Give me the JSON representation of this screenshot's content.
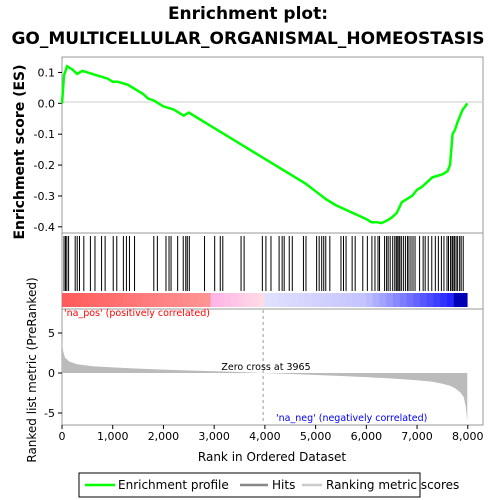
{
  "title_line1": "Enrichment plot:",
  "title_line2": "GO_MULTICELLULAR_ORGANISMAL_HOMEOSTASIS",
  "legend": {
    "es_label": "Enrichment profile",
    "hits_label": "Hits",
    "metric_label": "Ranking metric scores"
  },
  "colors": {
    "es_line": "#00ff00",
    "hits": "#000000",
    "metric_fill": "#bbbbbb",
    "pos_label": "#ff0000",
    "neg_label": "#0000ff",
    "zero_line": "#999999"
  },
  "annotations": {
    "pos": "'na_pos' (positively correlated)",
    "neg": "'na_neg' (negatively correlated)",
    "zero_cross": "Zero cross at 3965"
  },
  "chart_data": [
    {
      "type": "line",
      "ylabel": "Enrichment score (ES)",
      "ylim": [
        -0.42,
        0.15
      ],
      "yticks": [
        0.1,
        0.0,
        -0.1,
        -0.2,
        -0.3,
        -0.4
      ],
      "ytick_labels": [
        "0.1",
        "0.0",
        "-0.1",
        "-0.2",
        "-0.3",
        "-0.4"
      ],
      "grid": false,
      "series": [
        {
          "x": [
            0,
            40,
            100,
            200,
            300,
            400,
            500,
            700,
            800,
            900,
            1000,
            1100,
            1200,
            1300,
            1400,
            1500,
            1600,
            1700,
            1800,
            1900,
            2000,
            2100,
            2200,
            2300,
            2400,
            2500,
            2700,
            3000,
            3300,
            3600,
            3900,
            4200,
            4500,
            4800,
            5000,
            5200,
            5400,
            5600,
            5800,
            6000,
            6100,
            6200,
            6300,
            6400,
            6500,
            6600,
            6700,
            6800,
            6900,
            7000,
            7100,
            7200,
            7300,
            7400,
            7500,
            7600,
            7650,
            7700,
            7750,
            7800,
            7850,
            7900,
            7950,
            7990
          ],
          "y": [
            0.0,
            0.09,
            0.12,
            0.11,
            0.095,
            0.105,
            0.1,
            0.09,
            0.085,
            0.08,
            0.07,
            0.07,
            0.065,
            0.06,
            0.05,
            0.04,
            0.03,
            0.015,
            0.01,
            0.0,
            -0.01,
            -0.015,
            -0.02,
            -0.03,
            -0.04,
            -0.03,
            -0.05,
            -0.08,
            -0.11,
            -0.14,
            -0.17,
            -0.2,
            -0.23,
            -0.26,
            -0.285,
            -0.31,
            -0.33,
            -0.345,
            -0.36,
            -0.375,
            -0.385,
            -0.385,
            -0.388,
            -0.38,
            -0.37,
            -0.355,
            -0.32,
            -0.31,
            -0.3,
            -0.28,
            -0.27,
            -0.255,
            -0.24,
            -0.235,
            -0.23,
            -0.22,
            -0.2,
            -0.1,
            -0.085,
            -0.06,
            -0.04,
            -0.02,
            -0.01,
            0.0
          ]
        }
      ]
    },
    {
      "type": "line",
      "xlabel": "Rank in Ordered Dataset",
      "ylabel": "Ranked list metric (PreRanked)",
      "xlim": [
        0,
        8300
      ],
      "ylim": [
        -6.5,
        8
      ],
      "xticks": [
        0,
        1000,
        2000,
        3000,
        4000,
        5000,
        6000,
        7000,
        8000
      ],
      "xtick_labels": [
        "0",
        "1,000",
        "2,000",
        "3,000",
        "4,000",
        "5,000",
        "6,000",
        "7,000",
        "8,000"
      ],
      "yticks": [
        5,
        0,
        -5
      ],
      "ytick_labels": [
        "5",
        "0",
        "-5"
      ],
      "zero_cross": 3965,
      "series": [
        {
          "name": "Ranking metric scores",
          "x": [
            0,
            20,
            60,
            150,
            300,
            600,
            1000,
            1500,
            2000,
            2500,
            3000,
            3500,
            3965,
            4500,
            5000,
            5500,
            6000,
            6500,
            7000,
            7300,
            7500,
            7650,
            7750,
            7850,
            7920,
            7960,
            7990
          ],
          "y": [
            4.2,
            2.8,
            1.9,
            1.4,
            1.1,
            0.85,
            0.7,
            0.55,
            0.42,
            0.32,
            0.22,
            0.12,
            0.0,
            -0.12,
            -0.25,
            -0.38,
            -0.52,
            -0.68,
            -0.9,
            -1.1,
            -1.35,
            -1.6,
            -1.9,
            -2.4,
            -3.0,
            -4.2,
            -6.0
          ]
        }
      ],
      "hits": [
        40,
        70,
        95,
        130,
        260,
        300,
        345,
        430,
        560,
        650,
        780,
        850,
        1010,
        1080,
        1210,
        1270,
        1330,
        1430,
        1810,
        1880,
        2050,
        2110,
        2150,
        2280,
        2390,
        2440,
        2470,
        2510,
        2810,
        3010,
        3120,
        3170,
        3530,
        3590,
        3950,
        4020,
        4120,
        4280,
        4340,
        4380,
        4480,
        4540,
        4760,
        4810,
        5020,
        5070,
        5120,
        5160,
        5200,
        5280,
        5500,
        5550,
        5600,
        5720,
        5780,
        5930,
        6020,
        6110,
        6170,
        6230,
        6260,
        6360,
        6400,
        6430,
        6470,
        6520,
        6560,
        6590,
        6610,
        6640,
        6660,
        6690,
        6730,
        6770,
        6810,
        6840,
        6880,
        6920,
        6960,
        7050,
        7120,
        7160,
        7220,
        7290,
        7360,
        7420,
        7480,
        7530,
        7590,
        7620,
        7660,
        7690,
        7710,
        7740,
        7770,
        7800,
        7840,
        7870,
        7910
      ]
    }
  ]
}
